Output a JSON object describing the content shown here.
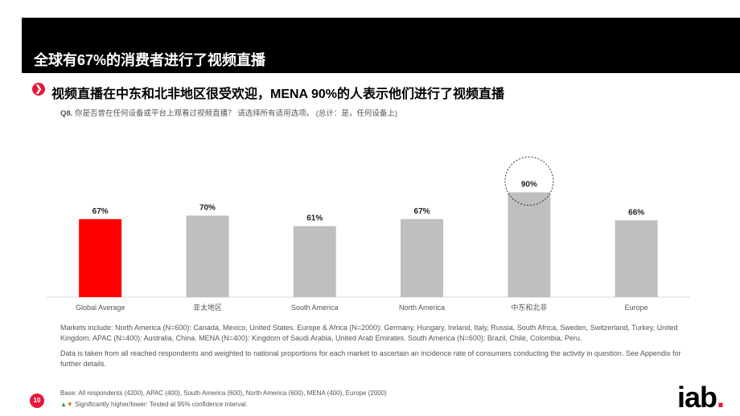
{
  "title": "全球有67%的消费者进行了视频直播",
  "headline": "视频直播在中东和北非地区很受欢迎，MENA 90%的人表示他们进行了视频直播",
  "question": {
    "label": "Q8.",
    "text": "你是否曾在任何设备或平台上观看过视频直播？ 请选择所有适用选项。 (总计：是，任何设备上)"
  },
  "chart_data": {
    "type": "bar",
    "categories": [
      "Global Average",
      "亚太地区",
      "South America",
      "North America",
      "中东和北非",
      "Europe"
    ],
    "values": [
      67,
      70,
      61,
      67,
      90,
      66
    ],
    "value_labels": [
      "67%",
      "70%",
      "61%",
      "67%",
      "90%",
      "66%"
    ],
    "ylim": [
      0,
      100
    ],
    "highlight_index": 0,
    "circled_index": 4,
    "colors": {
      "highlight": "#ff0000",
      "bar": "#bfbfbf"
    }
  },
  "notes": [
    "Markets include: North America (N=600): Canada, Mexico, United States. Europe & Africa (N=2000): Germany, Hungary, Ireland, Italy, Russia, South Africa, Sweden, Switzerland, Turkey, United Kingdom. APAC (N=400): Australia, China. MENA (N=400): Kingdom of Saudi Arabia, United Arab Emirates. South America (N=600): Brazil, Chile, Colombia, Peru.",
    "Data is taken from all reached respondents and weighted to national proportions for each market to ascertain an incidence rate of consumers conducting the activity in question. See Appendix for further details."
  ],
  "footer": {
    "base": "Base: All respondents (4200), APAC (400), South America (600), North America (600), MENA (400), Europe (2000)",
    "significance": "Significantly higher/lower: Tested at 95% confidence interval."
  },
  "page_number": "10",
  "logo": {
    "text": "iab",
    "dot": "."
  },
  "colors": {
    "accent": "#e8173a",
    "title_band": "#000000"
  }
}
